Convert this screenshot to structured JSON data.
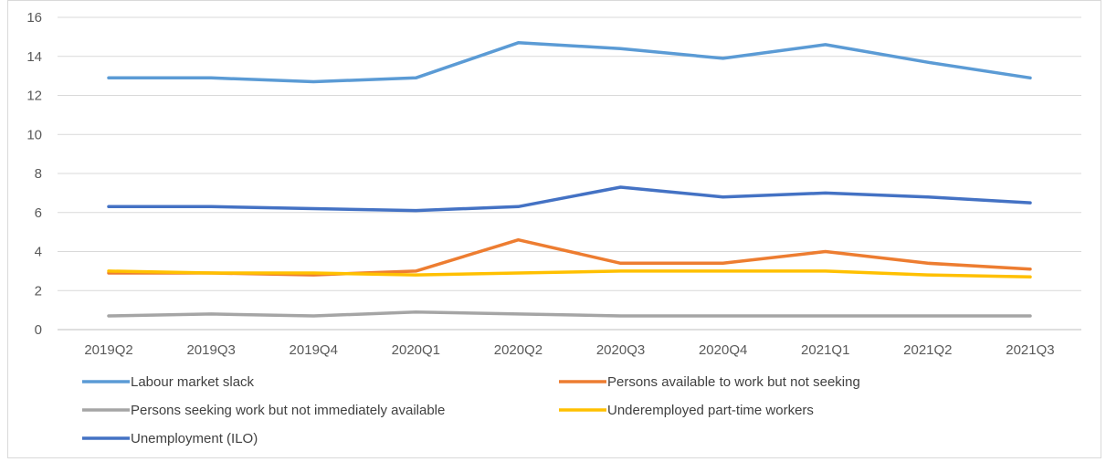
{
  "chart_data": {
    "type": "line",
    "title": "",
    "xlabel": "",
    "ylabel": "",
    "categories": [
      "2019Q2",
      "2019Q3",
      "2019Q4",
      "2020Q1",
      "2020Q2",
      "2020Q3",
      "2020Q4",
      "2021Q1",
      "2021Q2",
      "2021Q3"
    ],
    "ylim": [
      0,
      16
    ],
    "yticks": [
      0,
      2,
      4,
      6,
      8,
      10,
      12,
      14,
      16
    ],
    "grid": true,
    "legend_position": "bottom",
    "series": [
      {
        "name": "Labour market slack",
        "color": "#5B9BD5",
        "values": [
          12.9,
          12.9,
          12.7,
          12.9,
          14.7,
          14.4,
          13.9,
          14.6,
          13.7,
          12.9
        ]
      },
      {
        "name": "Persons available to work but not seeking",
        "color": "#ED7D31",
        "values": [
          2.9,
          2.9,
          2.8,
          3.0,
          4.6,
          3.4,
          3.4,
          4.0,
          3.4,
          3.1
        ]
      },
      {
        "name": "Persons seeking work but not immediately available",
        "color": "#A5A5A5",
        "values": [
          0.7,
          0.8,
          0.7,
          0.9,
          0.8,
          0.7,
          0.7,
          0.7,
          0.7,
          0.7
        ]
      },
      {
        "name": "Underemployed part-time workers",
        "color": "#FFC000",
        "values": [
          3.0,
          2.9,
          2.9,
          2.8,
          2.9,
          3.0,
          3.0,
          3.0,
          2.8,
          2.7
        ]
      },
      {
        "name": "Unemployment (ILO)",
        "color": "#4472C4",
        "values": [
          6.3,
          6.3,
          6.2,
          6.1,
          6.3,
          7.3,
          6.8,
          7.0,
          6.8,
          6.5
        ]
      }
    ]
  }
}
